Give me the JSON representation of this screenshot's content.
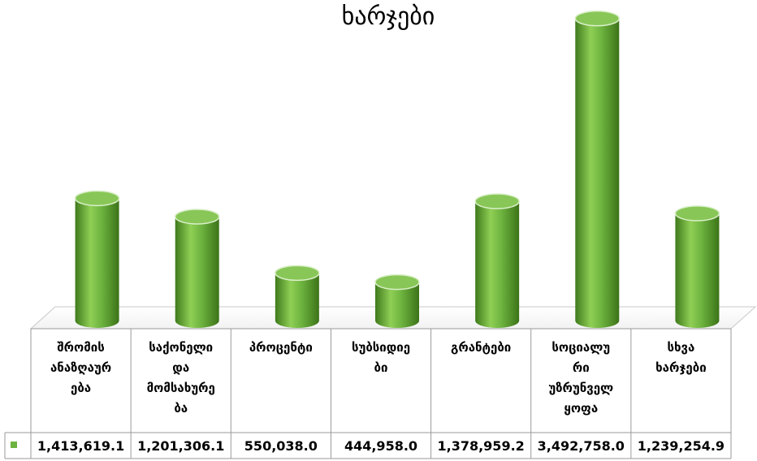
{
  "chart_data": {
    "type": "bar",
    "title": "ხარჯები",
    "categories": [
      [
        "შრომის",
        "ანაზღაურ",
        "ება"
      ],
      [
        "საქონელი",
        "და",
        "მომსახურე",
        "ბა"
      ],
      [
        "პროცენტი"
      ],
      [
        "სუბსიდიე",
        "ბი"
      ],
      [
        "გრანტები"
      ],
      [
        "სოციალუ",
        "რი",
        "უზრუნველ",
        "ყოფა"
      ],
      [
        "სხვა",
        "ხარჯები"
      ]
    ],
    "values": [
      1413619.1,
      1201306.1,
      550038.0,
      444958.0,
      1378959.2,
      3492758.0,
      1239254.9
    ],
    "value_labels": [
      "1,413,619.1",
      "1,201,306.1",
      "550,038.0",
      "444,958.0",
      "1,378,959.2",
      "3,492,758.0",
      "1,239,254.9"
    ],
    "ylim": [
      0,
      3500000
    ],
    "grid": false,
    "legend": "data-table",
    "colors": {
      "bar": "#6db33f",
      "bar_dark": "#3f7a1c",
      "bar_light": "#a4d86e",
      "top": "#88c757",
      "legend_key": "#6db33f"
    }
  }
}
